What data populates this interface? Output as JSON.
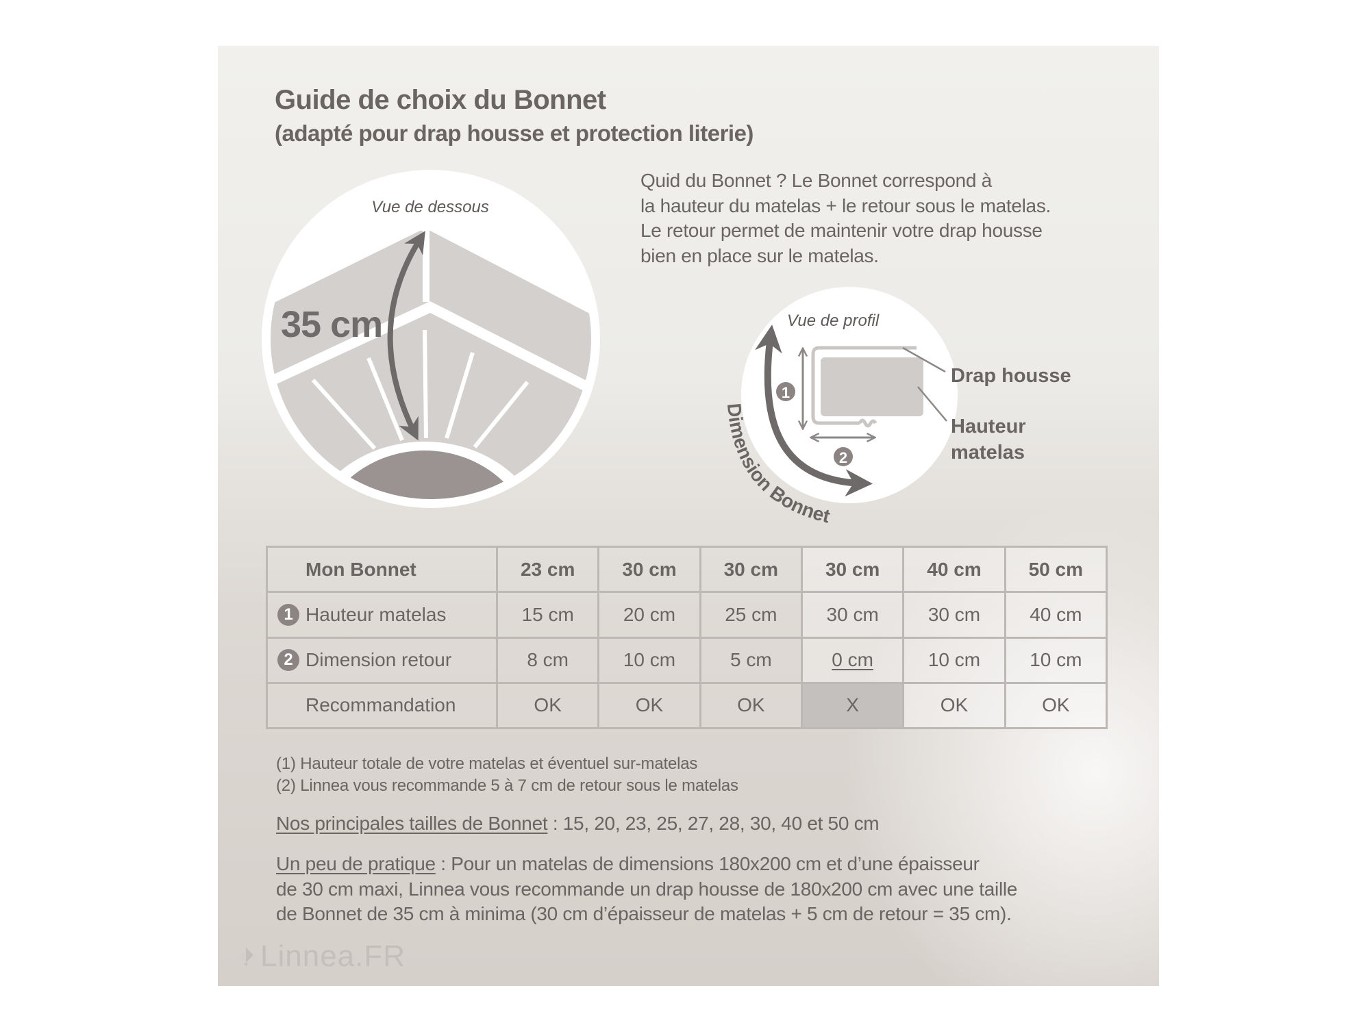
{
  "title": "Guide de choix du Bonnet",
  "subtitle": "(adapté pour drap housse et protection literie)",
  "intro": [
    "Quid du Bonnet ? Le Bonnet correspond à",
    "la hauteur du matelas + le retour sous le matelas.",
    "Le retour permet de maintenir votre drap housse",
    "bien en place sur le matelas."
  ],
  "diagram_bottom": {
    "caption": "Vue de dessous",
    "measure": "35 cm"
  },
  "diagram_profile": {
    "caption": "Vue de profil",
    "badge1": "1",
    "badge2": "2",
    "curve_label": "Dimension Bonnet",
    "label_sheet": "Drap housse",
    "label_height_1": "Hauteur",
    "label_height_2": "matelas"
  },
  "table": {
    "header": {
      "label": "Mon Bonnet",
      "values": [
        "23 cm",
        "30 cm",
        "30 cm",
        "30 cm",
        "40 cm",
        "50 cm"
      ]
    },
    "rows": [
      {
        "badge": "1",
        "label": "Hauteur matelas",
        "values": [
          "15 cm",
          "20 cm",
          "25 cm",
          "30 cm",
          "30 cm",
          "40 cm"
        ]
      },
      {
        "badge": "2",
        "label": "Dimension retour",
        "values": [
          "8 cm",
          "10 cm",
          "5 cm",
          "0 cm",
          "10 cm",
          "10 cm"
        ]
      },
      {
        "badge": "",
        "label": "Recommandation",
        "values": [
          "OK",
          "OK",
          "OK",
          "X",
          "OK",
          "OK"
        ]
      }
    ]
  },
  "notes": [
    "(1) Hauteur totale de votre matelas et éventuel sur-matelas",
    "(2) Linnea vous recommande 5 à 7 cm de retour sous le matelas"
  ],
  "sizes": {
    "label": "Nos principales tailles de Bonnet",
    "text": " : 15, 20, 23, 25, 27, 28, 30, 40 et 50 cm"
  },
  "practice": {
    "label": "Un peu de pratique",
    "line1": " : Pour un matelas de dimensions 180x200 cm et d’une épaisseur",
    "line2": "de 30 cm maxi, Linnea vous recommande un drap housse de 180x200 cm avec une taille",
    "line3": "de Bonnet de 35 cm à minima (30 cm d’épaisseur de matelas + 5 cm de retour = 35 cm)."
  },
  "logo": "Linnea.FR",
  "colors": {
    "text": "#6a6462",
    "arrow": "#6e6a69",
    "badge": "#8b8482",
    "not_ok_cell": "#c3c0bd"
  }
}
